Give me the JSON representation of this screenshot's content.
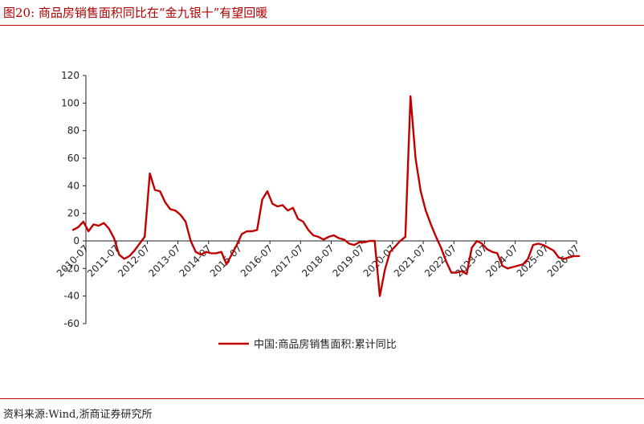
{
  "header": {
    "title": "图20:   商品房销售面积同比在“金九银十”有望回暖"
  },
  "footer": {
    "source": "资料来源:Wind,浙商证券研究所"
  },
  "colors": {
    "accent": "#c00000",
    "series": "#c00000",
    "axis": "#222222"
  },
  "chart_data": {
    "type": "line",
    "title": "",
    "xlabel": "",
    "ylabel": "",
    "ylim": [
      -60,
      120
    ],
    "yticks": [
      -60,
      -40,
      -20,
      0,
      20,
      40,
      60,
      80,
      100,
      120
    ],
    "xticks": [
      "2010-07",
      "2011-07",
      "2012-07",
      "2013-07",
      "2014-07",
      "2015-07",
      "2016-07",
      "2017-07",
      "2018-07",
      "2019-07",
      "2020-07",
      "2021-07",
      "2022-07",
      "2023-07",
      "2024-07",
      "2025-07",
      "2026-07"
    ],
    "grid": false,
    "legend": "bottom-center",
    "series": [
      {
        "name": "中国:商品房销售面积:累计同比",
        "x": [
          "2010-02",
          "2010-04",
          "2010-06",
          "2010-08",
          "2010-10",
          "2010-12",
          "2011-02",
          "2011-04",
          "2011-06",
          "2011-08",
          "2011-10",
          "2011-12",
          "2012-02",
          "2012-04",
          "2012-06",
          "2012-08",
          "2012-10",
          "2012-12",
          "2013-02",
          "2013-04",
          "2013-06",
          "2013-08",
          "2013-10",
          "2013-12",
          "2014-02",
          "2014-04",
          "2014-06",
          "2014-08",
          "2014-10",
          "2014-12",
          "2015-02",
          "2015-04",
          "2015-06",
          "2015-08",
          "2015-10",
          "2015-12",
          "2016-02",
          "2016-04",
          "2016-06",
          "2016-08",
          "2016-10",
          "2016-12",
          "2017-02",
          "2017-04",
          "2017-06",
          "2017-08",
          "2017-10",
          "2017-12",
          "2018-02",
          "2018-04",
          "2018-06",
          "2018-08",
          "2018-10",
          "2018-12",
          "2019-02",
          "2019-04",
          "2019-06",
          "2019-08",
          "2019-10",
          "2019-12",
          "2020-02",
          "2020-04",
          "2020-06",
          "2020-08",
          "2020-10",
          "2020-12",
          "2021-02",
          "2021-04",
          "2021-06",
          "2021-08",
          "2021-10",
          "2021-12",
          "2022-02",
          "2022-04",
          "2022-06",
          "2022-08",
          "2022-10",
          "2022-12",
          "2023-02",
          "2023-04",
          "2023-06",
          "2023-08",
          "2023-10",
          "2023-12",
          "2024-02",
          "2024-04",
          "2024-06",
          "2024-08",
          "2024-10",
          "2024-12",
          "2025-02",
          "2025-04",
          "2025-06",
          "2025-08",
          "2025-10",
          "2025-12",
          "2026-02",
          "2026-04",
          "2026-06",
          "2026-08"
        ],
        "values": [
          8,
          10,
          14,
          7,
          12,
          11,
          13,
          9,
          2,
          -10,
          -13,
          -11,
          -7,
          -2,
          3,
          49,
          37,
          36,
          28,
          23,
          22,
          19,
          14,
          0,
          -8,
          -10,
          -8,
          -9,
          -9,
          -8,
          -17,
          -10,
          -3,
          5,
          7,
          7,
          8,
          30,
          36,
          27,
          25,
          26,
          22,
          24,
          16,
          14,
          8,
          4,
          3,
          1,
          3,
          4,
          2,
          1,
          -2,
          -3,
          -1,
          -1,
          0,
          0,
          -40,
          -21,
          -8,
          -4,
          0,
          3,
          105,
          60,
          36,
          22,
          12,
          3,
          -5,
          -15,
          -23,
          -23,
          -22,
          -24,
          -5,
          0,
          -2,
          -6,
          -8,
          -9,
          -18,
          -20,
          -19,
          -18,
          -17,
          -13,
          -3,
          -2,
          -3,
          -5,
          -7,
          -12,
          -13,
          -12,
          -11,
          -11
        ]
      }
    ]
  }
}
